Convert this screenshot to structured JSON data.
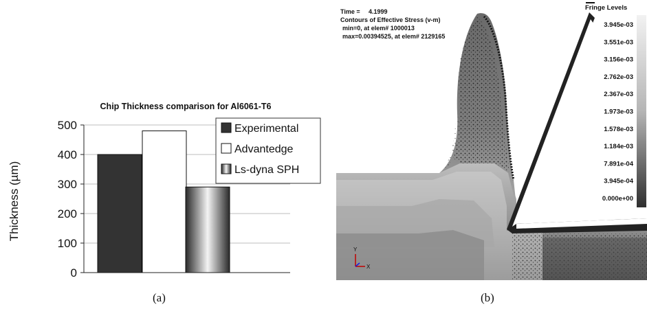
{
  "panel_a": {
    "caption": "(a)",
    "chart_data": {
      "type": "bar",
      "title": "Chip Thickness comparison for Al6061-T6",
      "xlabel": "",
      "ylabel": "Thickness (µm)",
      "ylim": [
        0,
        500
      ],
      "yticks": [
        "0",
        "100",
        "200",
        "300",
        "400",
        "500"
      ],
      "grid": true,
      "legend_position": "top-right",
      "series": [
        {
          "name": "Experimental",
          "values": [
            400
          ],
          "color": "#333333",
          "fill": "solid"
        },
        {
          "name": "Advantedge",
          "values": [
            480
          ],
          "color": "#ffffff",
          "fill": "solid"
        },
        {
          "name": "Ls-dyna SPH",
          "values": [
            290
          ],
          "color": "#888888",
          "fill": "gradient"
        }
      ]
    }
  },
  "panel_b": {
    "caption": "(b)",
    "header": {
      "time_label": "Time =",
      "time_value": "4.1999",
      "title": "Contours of Effective Stress (v-m)",
      "min_line": "min=0, at elem# 1000013",
      "max_line": "max=0.00394525, at elem# 2129165"
    },
    "fringe": {
      "title": "Fringe Levels",
      "levels": [
        "3.945e-03",
        "3.551e-03",
        "3.156e-03",
        "2.762e-03",
        "2.367e-03",
        "1.973e-03",
        "1.578e-03",
        "1.184e-03",
        "7.891e-04",
        "3.945e-04",
        "0.000e+00"
      ]
    },
    "axes_triad": {
      "y": "Y",
      "x": "X"
    }
  }
}
